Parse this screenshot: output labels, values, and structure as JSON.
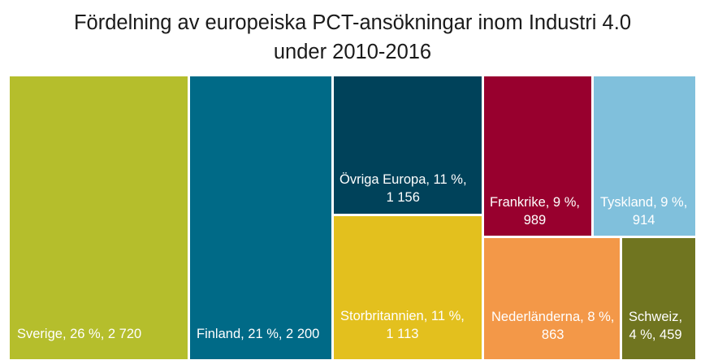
{
  "chart_data": {
    "type": "treemap",
    "title_line1": "Fördelning av europeiska PCT-ansökningar inom Industri 4.0",
    "title_line2": "under 2010-2016",
    "items": [
      {
        "name": "Sverige",
        "share_pct": 26,
        "value": 2720,
        "label_line1": "Sverige, 26 %, 2 720",
        "label_line2": "",
        "color": "#b5be2c"
      },
      {
        "name": "Finland",
        "share_pct": 21,
        "value": 2200,
        "label_line1": "Finland, 21 %, 2 200",
        "label_line2": "",
        "color": "#006a87"
      },
      {
        "name": "Övriga Europa",
        "share_pct": 11,
        "value": 1156,
        "label_line1": "Övriga Europa, 11 %,",
        "label_line2": "1 156",
        "color": "#00425a"
      },
      {
        "name": "Storbritannien",
        "share_pct": 11,
        "value": 1113,
        "label_line1": "Storbritannien, 11 %,",
        "label_line2": "1 113",
        "color": "#e3c01e"
      },
      {
        "name": "Frankrike",
        "share_pct": 9,
        "value": 989,
        "label_line1": "Frankrike, 9 %,",
        "label_line2": "989",
        "color": "#98002e"
      },
      {
        "name": "Tyskland",
        "share_pct": 9,
        "value": 914,
        "label_line1": "Tyskland, 9 %,",
        "label_line2": "914",
        "color": "#80c0dc"
      },
      {
        "name": "Nederländerna",
        "share_pct": 8,
        "value": 863,
        "label_line1": "Nederländerna, 8 %,",
        "label_line2": "863",
        "color": "#f39848"
      },
      {
        "name": "Schweiz",
        "share_pct": 4,
        "value": 459,
        "label_line1": "Schweiz,",
        "label_line2": "4 %, 459",
        "color": "#707520"
      }
    ]
  }
}
